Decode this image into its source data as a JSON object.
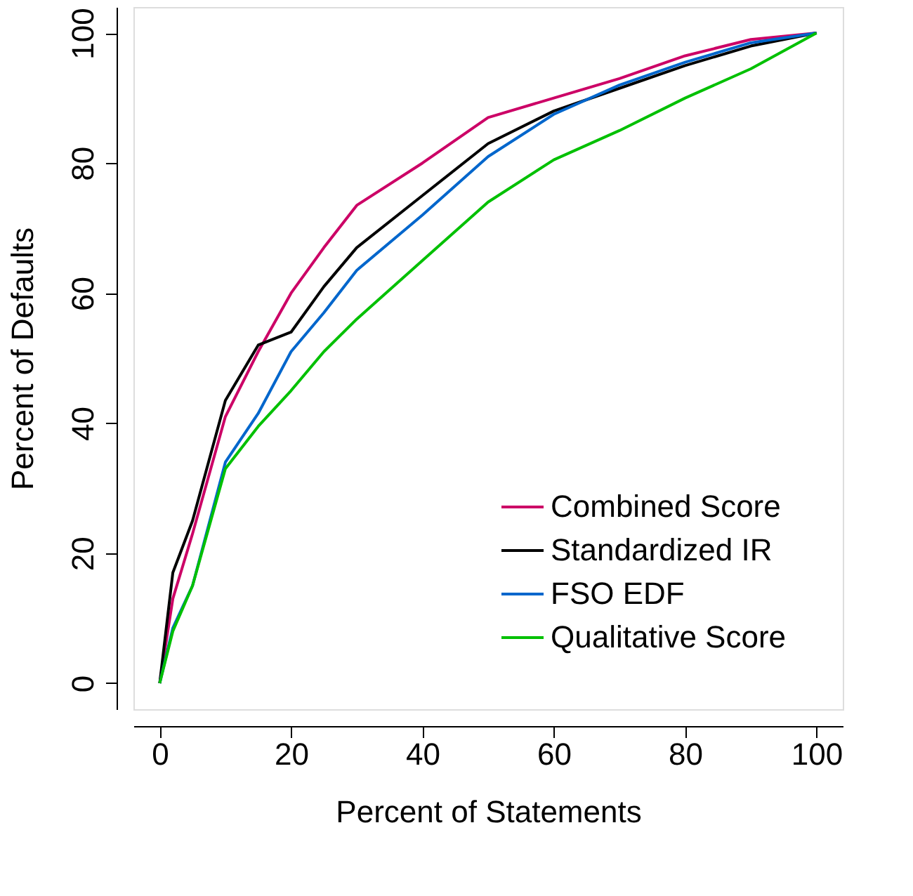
{
  "chart_data": {
    "type": "line",
    "xlabel": "Percent of Statements",
    "ylabel": "Percent of Defaults",
    "x": [
      0,
      2,
      5,
      10,
      15,
      20,
      25,
      30,
      40,
      50,
      60,
      70,
      80,
      90,
      100
    ],
    "series": [
      {
        "name": "Combined Score",
        "color": "#cc0066",
        "values": [
          0,
          13,
          23,
          41,
          51,
          60,
          67,
          73.5,
          80,
          87,
          90,
          93,
          96.5,
          99,
          100
        ]
      },
      {
        "name": "Standardized IR",
        "color": "#000000",
        "values": [
          0,
          17,
          25,
          43.5,
          52,
          54,
          61,
          67,
          75,
          83,
          88,
          91.5,
          95,
          98,
          100
        ]
      },
      {
        "name": "FSO EDF",
        "color": "#0066cc",
        "values": [
          0,
          8.5,
          15,
          34,
          41.5,
          51,
          57,
          63.5,
          72,
          81,
          87.5,
          92,
          95.5,
          98.5,
          100
        ]
      },
      {
        "name": "Qualitative Score",
        "color": "#00c000",
        "values": [
          0,
          8,
          15,
          33,
          39.5,
          45,
          51,
          56,
          65,
          74,
          80.5,
          85,
          90,
          94.5,
          100
        ]
      }
    ],
    "xlim": [
      -4,
      104
    ],
    "ylim": [
      -4,
      104
    ],
    "xticks": [
      0,
      20,
      40,
      60,
      80,
      100
    ],
    "yticks": [
      0,
      20,
      40,
      60,
      80,
      100
    ],
    "grid": false,
    "legend": "bottom right",
    "marker": "none",
    "line_style": "solid"
  }
}
